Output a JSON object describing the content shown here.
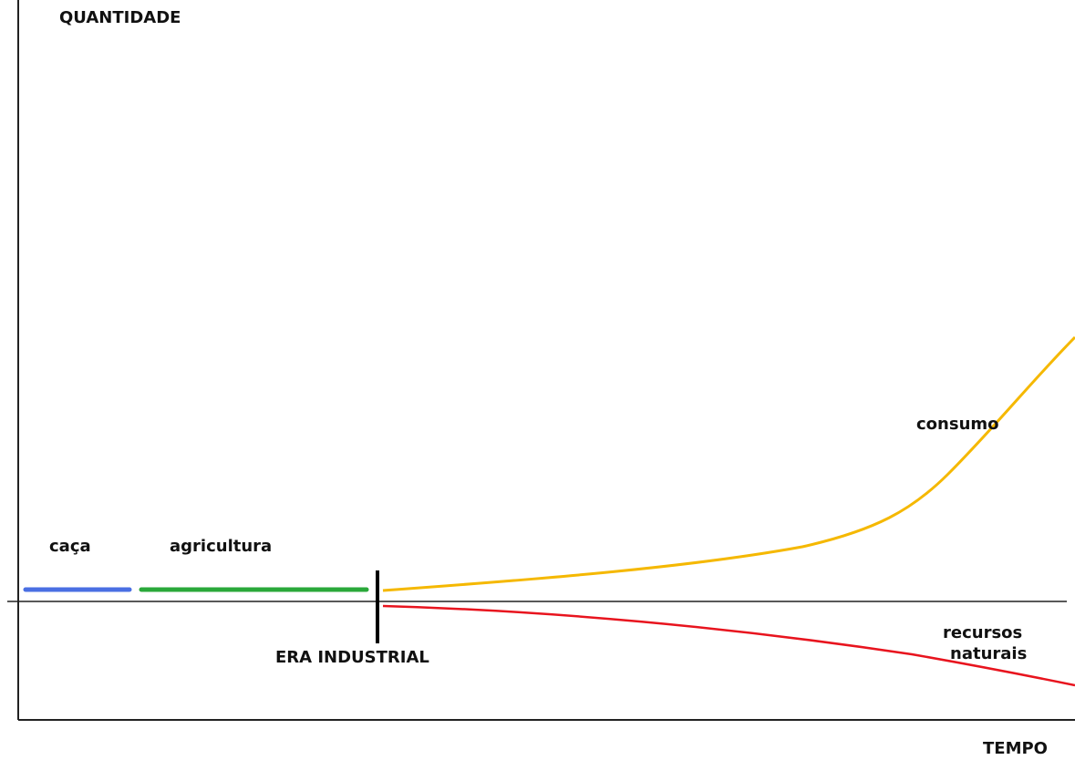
{
  "axes": {
    "y_label": "QUANTIDADE",
    "x_label": "TEMPO"
  },
  "labels": {
    "hunting": "caça",
    "agriculture": "agricultura",
    "industrial": "ERA INDUSTRIAL",
    "consumption": "consumo",
    "resources": [
      "recursos",
      "naturais"
    ]
  }
}
